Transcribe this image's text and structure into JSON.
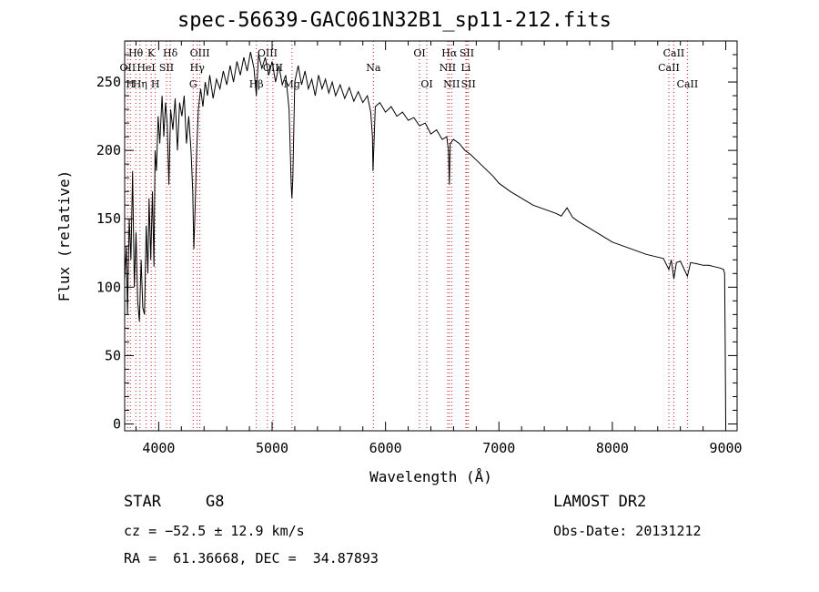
{
  "chart_data": {
    "type": "line",
    "title": "spec-56639-GAC061N32B1_sp11-212.fits",
    "xlabel": "Wavelength (Å)",
    "ylabel": "Flux (relative)",
    "xlim": [
      3700,
      9100
    ],
    "ylim": [
      -5,
      280
    ],
    "xticks": [
      4000,
      5000,
      6000,
      7000,
      8000,
      9000
    ],
    "yticks": [
      0,
      50,
      100,
      150,
      200,
      250
    ],
    "grid": false,
    "series": [
      {
        "points": [
          [
            3700,
            105
          ],
          [
            3715,
            130
          ],
          [
            3725,
            80
          ],
          [
            3740,
            150
          ],
          [
            3755,
            120
          ],
          [
            3770,
            185
          ],
          [
            3785,
            100
          ],
          [
            3800,
            140
          ],
          [
            3815,
            90
          ],
          [
            3830,
            75
          ],
          [
            3845,
            120
          ],
          [
            3860,
            85
          ],
          [
            3875,
            80
          ],
          [
            3890,
            145
          ],
          [
            3905,
            110
          ],
          [
            3915,
            165
          ],
          [
            3930,
            120
          ],
          [
            3945,
            170
          ],
          [
            3958,
            115
          ],
          [
            3968,
            200
          ],
          [
            3980,
            185
          ],
          [
            3995,
            225
          ],
          [
            4010,
            205
          ],
          [
            4030,
            240
          ],
          [
            4045,
            210
          ],
          [
            4060,
            235
          ],
          [
            4075,
            220
          ],
          [
            4090,
            175
          ],
          [
            4105,
            230
          ],
          [
            4125,
            215
          ],
          [
            4145,
            238
          ],
          [
            4165,
            200
          ],
          [
            4185,
            235
          ],
          [
            4205,
            225
          ],
          [
            4225,
            240
          ],
          [
            4245,
            205
          ],
          [
            4265,
            225
          ],
          [
            4285,
            200
          ],
          [
            4300,
            170
          ],
          [
            4310,
            128
          ],
          [
            4320,
            155
          ],
          [
            4335,
            200
          ],
          [
            4350,
            230
          ],
          [
            4370,
            245
          ],
          [
            4390,
            232
          ],
          [
            4410,
            250
          ],
          [
            4430,
            240
          ],
          [
            4450,
            255
          ],
          [
            4480,
            238
          ],
          [
            4510,
            252
          ],
          [
            4540,
            245
          ],
          [
            4570,
            258
          ],
          [
            4600,
            248
          ],
          [
            4630,
            262
          ],
          [
            4660,
            250
          ],
          [
            4690,
            265
          ],
          [
            4720,
            255
          ],
          [
            4750,
            268
          ],
          [
            4780,
            258
          ],
          [
            4810,
            272
          ],
          [
            4840,
            260
          ],
          [
            4861,
            240
          ],
          [
            4880,
            270
          ],
          [
            4910,
            260
          ],
          [
            4940,
            268
          ],
          [
            4970,
            255
          ],
          [
            5000,
            265
          ],
          [
            5030,
            250
          ],
          [
            5060,
            262
          ],
          [
            5090,
            248
          ],
          [
            5120,
            255
          ],
          [
            5150,
            230
          ],
          [
            5168,
            175
          ],
          [
            5175,
            165
          ],
          [
            5183,
            180
          ],
          [
            5200,
            250
          ],
          [
            5230,
            262
          ],
          [
            5260,
            248
          ],
          [
            5290,
            258
          ],
          [
            5320,
            245
          ],
          [
            5350,
            252
          ],
          [
            5380,
            240
          ],
          [
            5410,
            255
          ],
          [
            5440,
            245
          ],
          [
            5470,
            252
          ],
          [
            5500,
            242
          ],
          [
            5530,
            250
          ],
          [
            5560,
            240
          ],
          [
            5600,
            248
          ],
          [
            5640,
            238
          ],
          [
            5680,
            246
          ],
          [
            5720,
            236
          ],
          [
            5760,
            243
          ],
          [
            5800,
            235
          ],
          [
            5840,
            240
          ],
          [
            5870,
            228
          ],
          [
            5885,
            210
          ],
          [
            5890,
            185
          ],
          [
            5896,
            200
          ],
          [
            5910,
            232
          ],
          [
            5950,
            235
          ],
          [
            6000,
            228
          ],
          [
            6050,
            232
          ],
          [
            6100,
            225
          ],
          [
            6150,
            228
          ],
          [
            6200,
            222
          ],
          [
            6250,
            224
          ],
          [
            6300,
            218
          ],
          [
            6350,
            220
          ],
          [
            6400,
            212
          ],
          [
            6450,
            215
          ],
          [
            6500,
            208
          ],
          [
            6540,
            210
          ],
          [
            6555,
            200
          ],
          [
            6563,
            175
          ],
          [
            6570,
            205
          ],
          [
            6600,
            208
          ],
          [
            6650,
            205
          ],
          [
            6700,
            200
          ],
          [
            6750,
            197
          ],
          [
            6800,
            193
          ],
          [
            6850,
            189
          ],
          [
            6900,
            185
          ],
          [
            6950,
            181
          ],
          [
            7000,
            176
          ],
          [
            7100,
            170
          ],
          [
            7200,
            165
          ],
          [
            7300,
            160
          ],
          [
            7400,
            157
          ],
          [
            7500,
            154
          ],
          [
            7550,
            152
          ],
          [
            7600,
            158
          ],
          [
            7650,
            151
          ],
          [
            7700,
            148
          ],
          [
            7800,
            143
          ],
          [
            7900,
            138
          ],
          [
            8000,
            133
          ],
          [
            8100,
            130
          ],
          [
            8200,
            127
          ],
          [
            8300,
            124
          ],
          [
            8400,
            122
          ],
          [
            8450,
            121
          ],
          [
            8498,
            113
          ],
          [
            8520,
            120
          ],
          [
            8542,
            106
          ],
          [
            8565,
            118
          ],
          [
            8600,
            119
          ],
          [
            8662,
            108
          ],
          [
            8690,
            118
          ],
          [
            8750,
            117
          ],
          [
            8800,
            116
          ],
          [
            8850,
            116
          ],
          [
            8900,
            115
          ],
          [
            8950,
            114
          ],
          [
            8980,
            113
          ],
          [
            8990,
            110
          ],
          [
            8995,
            60
          ],
          [
            9000,
            0
          ]
        ]
      }
    ],
    "lines": [
      {
        "label": "Hθ",
        "x": 3798,
        "row": 1
      },
      {
        "label": "K",
        "x": 3934,
        "row": 1
      },
      {
        "label": "Hδ",
        "x": 4102,
        "row": 1
      },
      {
        "label": "OIII",
        "x": 4363,
        "row": 1
      },
      {
        "label": "OIII",
        "x": 4959,
        "row": 1
      },
      {
        "label": "OI",
        "x": 6300,
        "row": 1
      },
      {
        "label": "Hα",
        "x": 6563,
        "row": 1
      },
      {
        "label": "SII",
        "x": 6717,
        "row": 1
      },
      {
        "label": "CaII",
        "x": 8542,
        "row": 1
      },
      {
        "label": "OII",
        "x": 3727,
        "row": 2
      },
      {
        "label": "HeI",
        "x": 3889,
        "row": 2
      },
      {
        "label": "SII",
        "x": 4069,
        "row": 2
      },
      {
        "label": "Hγ",
        "x": 4340,
        "row": 2
      },
      {
        "label": "OIII",
        "x": 5007,
        "row": 2
      },
      {
        "label": "Na",
        "x": 5893,
        "row": 2
      },
      {
        "label": "NII",
        "x": 6548,
        "row": 2
      },
      {
        "label": "Li",
        "x": 6708,
        "row": 2
      },
      {
        "label": "CaII",
        "x": 8498,
        "row": 2
      },
      {
        "label": "H",
        "x": 3750,
        "row": 3
      },
      {
        "label": "Hη",
        "x": 3835,
        "row": 3
      },
      {
        "label": "H",
        "x": 3970,
        "row": 3
      },
      {
        "label": "G",
        "x": 4304,
        "row": 3
      },
      {
        "label": "Hβ",
        "x": 4861,
        "row": 3
      },
      {
        "label": "Mg",
        "x": 5175,
        "row": 3
      },
      {
        "label": "OI",
        "x": 6364,
        "row": 3
      },
      {
        "label": "NII",
        "x": 6583,
        "row": 3
      },
      {
        "label": "SII",
        "x": 6731,
        "row": 3
      },
      {
        "label": "CaII",
        "x": 8662,
        "row": 3
      }
    ]
  },
  "info": {
    "object_class": "STAR",
    "subclass": "G8",
    "survey": "LAMOST DR2",
    "cz": "cz = −52.5 ± 12.9 km/s",
    "obs_date": "Obs-Date: 20131212",
    "coords": "RA =  61.36668, DEC =  34.87893"
  }
}
